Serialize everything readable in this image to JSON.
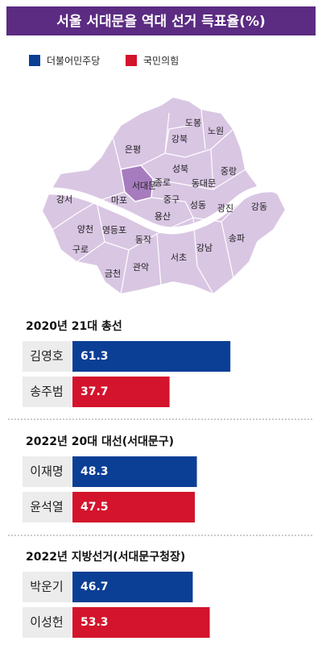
{
  "title": "서울 서대문을 역대 선거 득표율(%)",
  "legend": [
    {
      "name": "더불어민주당",
      "color": "#0b3e95"
    },
    {
      "name": "국민의힘",
      "color": "#d3142c"
    }
  ],
  "map": {
    "districts": [
      "도봉",
      "노원",
      "강북",
      "은평",
      "성북",
      "중랑",
      "종로",
      "서대문",
      "동대문",
      "마포",
      "중구",
      "강서",
      "성동",
      "광진",
      "강동",
      "용산",
      "양천",
      "영등포",
      "동작",
      "송파",
      "강남",
      "구로",
      "서초",
      "관악",
      "금천"
    ]
  },
  "chart_data": [
    {
      "type": "bar",
      "title": "2020년 21대 총선",
      "categories": [
        "김영호",
        "송주범"
      ],
      "values": [
        61.3,
        37.7
      ],
      "colors": [
        "#0b3e95",
        "#d3142c"
      ]
    },
    {
      "type": "bar",
      "title": "2022년 20대 대선(서대문구)",
      "categories": [
        "이재명",
        "윤석열"
      ],
      "values": [
        48.3,
        47.5
      ],
      "colors": [
        "#0b3e95",
        "#d3142c"
      ]
    },
    {
      "type": "bar",
      "title": "2022년 지방선거(서대문구청장)",
      "categories": [
        "박운기",
        "이성헌"
      ],
      "values": [
        46.7,
        53.3
      ],
      "colors": [
        "#0b3e95",
        "#d3142c"
      ]
    }
  ]
}
